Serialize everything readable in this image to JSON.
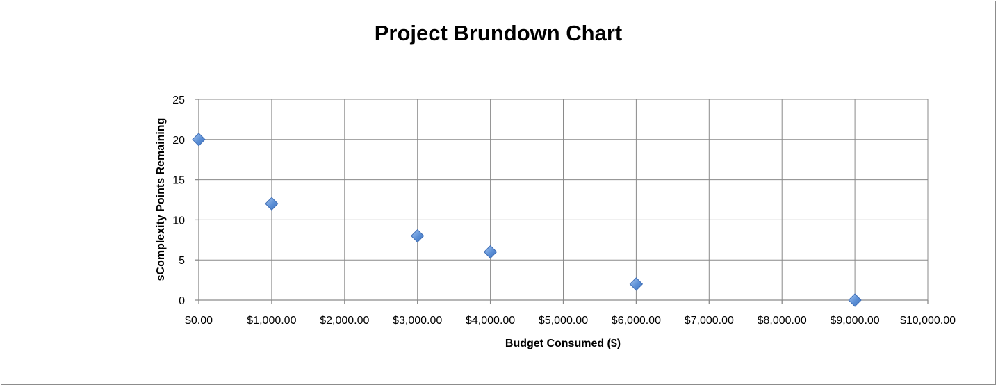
{
  "chart_data": {
    "type": "scatter",
    "title": "Project Brundown Chart",
    "xlabel": "Budget Consumed ($)",
    "ylabel": "sComplexity Points Remaining",
    "xlim": [
      0,
      10000
    ],
    "ylim": [
      0,
      25
    ],
    "x_ticks": [
      0,
      1000,
      2000,
      3000,
      4000,
      5000,
      6000,
      7000,
      8000,
      9000,
      10000
    ],
    "x_tick_labels": [
      "$0.00",
      "$1,000.00",
      "$2,000.00",
      "$3,000.00",
      "$4,000.00",
      "$5,000.00",
      "$6,000.00",
      "$7,000.00",
      "$8,000.00",
      "$9,000.00",
      "$10,000.00"
    ],
    "y_ticks": [
      0,
      5,
      10,
      15,
      20,
      25
    ],
    "y_tick_labels": [
      "0",
      "5",
      "10",
      "15",
      "20",
      "25"
    ],
    "grid": true,
    "legend": "none",
    "marker": "diamond",
    "marker_color": "#5b8fd6",
    "points": [
      {
        "x": 0,
        "y": 20
      },
      {
        "x": 1000,
        "y": 12
      },
      {
        "x": 3000,
        "y": 8
      },
      {
        "x": 4000,
        "y": 6
      },
      {
        "x": 6000,
        "y": 2
      },
      {
        "x": 9000,
        "y": 0
      }
    ]
  }
}
